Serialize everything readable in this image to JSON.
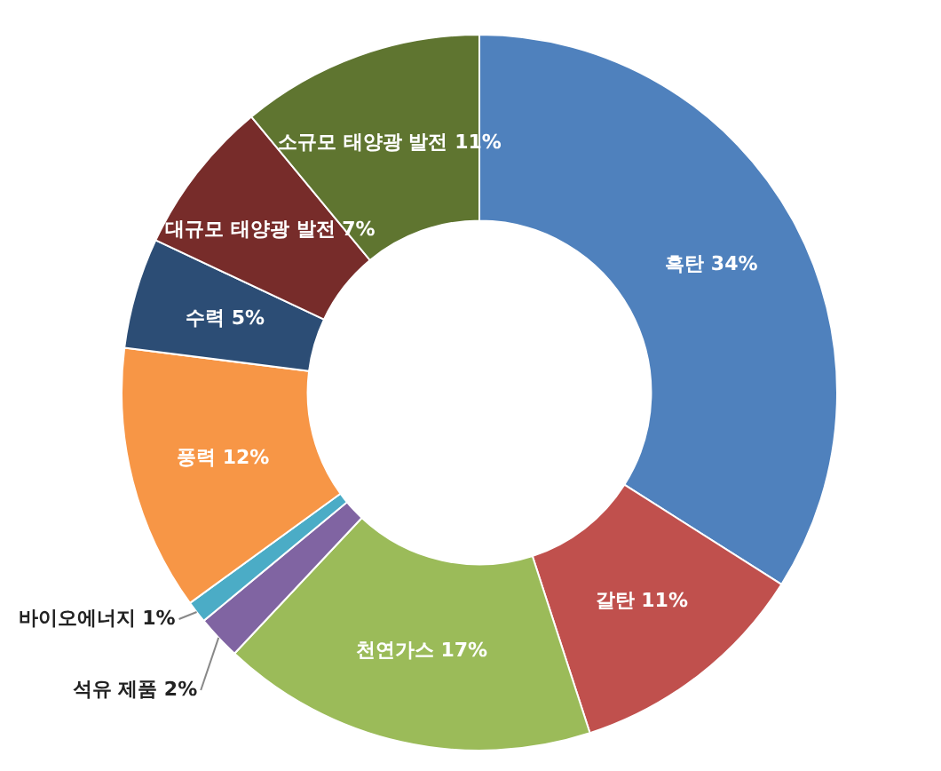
{
  "chart_data": {
    "type": "donut",
    "categories": [
      "흑탄",
      "갈탄",
      "천연가스",
      "석유 제품",
      "바이오에너지",
      "풍력",
      "수력",
      "대규모 태양광 발전",
      "소규모 태양광 발전"
    ],
    "values": [
      34,
      11,
      17,
      2,
      1,
      12,
      5,
      7,
      11
    ],
    "value_labels": [
      "34%",
      "11%",
      "17%",
      "2%",
      "1%",
      "12%",
      "5%",
      "7%",
      "11%"
    ],
    "colors": [
      "#4f81bd",
      "#c0504d",
      "#9bbb59",
      "#8064a2",
      "#4bacc6",
      "#f79646",
      "#2c4d75",
      "#772c2a",
      "#5f7530"
    ],
    "legend": false
  }
}
